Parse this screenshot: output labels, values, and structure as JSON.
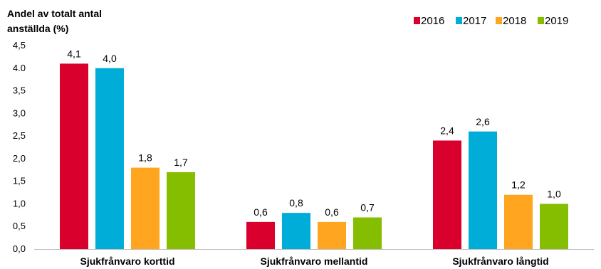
{
  "chart_data": {
    "type": "bar",
    "title": "Andel av totalt antal anställda (%)",
    "title_lines": [
      "Andel av totalt antal",
      "anställda (%)"
    ],
    "categories": [
      "Sjukfrånvaro korttid",
      "Sjukfrånvaro mellantid",
      "Sjukfrånvaro långtid"
    ],
    "series": [
      {
        "name": "2016",
        "color": "#d9002d",
        "values": [
          4.1,
          0.6,
          2.4
        ],
        "labels": [
          "4,1",
          "0,6",
          "2,4"
        ]
      },
      {
        "name": "2017",
        "color": "#00acd8",
        "values": [
          4.0,
          0.8,
          2.6
        ],
        "labels": [
          "4,0",
          "0,8",
          "2,6"
        ]
      },
      {
        "name": "2018",
        "color": "#ffa51f",
        "values": [
          1.8,
          0.6,
          1.2
        ],
        "labels": [
          "1,8",
          "0,6",
          "1,2"
        ]
      },
      {
        "name": "2019",
        "color": "#85bd00",
        "values": [
          1.7,
          0.7,
          1.0
        ],
        "labels": [
          "1,7",
          "0,7",
          "1,0"
        ]
      }
    ],
    "ylim": [
      0,
      4.5
    ],
    "yticks": [
      "0,0",
      "0,5",
      "1,0",
      "1,5",
      "2,0",
      "2,5",
      "3,0",
      "3,5",
      "4.0",
      "4,5"
    ],
    "grid": false,
    "legend": "top-right"
  }
}
